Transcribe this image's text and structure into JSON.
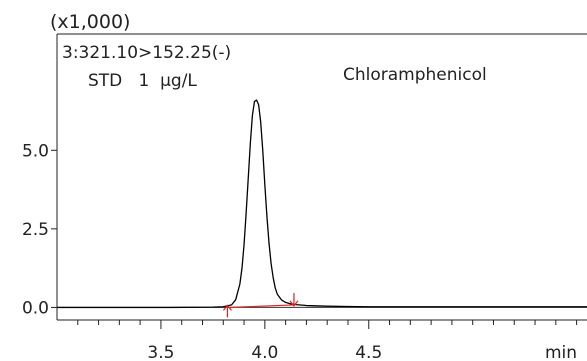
{
  "chart_data": {
    "type": "line",
    "y_multiplier_label": "(x1,000)",
    "channel_label": "3:321.10>152.25(-)",
    "sample_label": "STD   1  μg/L",
    "peak_label": "Chloramphenicol",
    "xlabel": "min",
    "x_unit": "min",
    "y_multiplier": 1000,
    "xlim": [
      3.0,
      5.55
    ],
    "ylim": [
      -0.4,
      8.7
    ],
    "x_ticks": [
      {
        "value": 3.5,
        "label": "3.5"
      },
      {
        "value": 4.0,
        "label": "4.0"
      },
      {
        "value": 4.5,
        "label": "4.5"
      }
    ],
    "y_ticks": [
      {
        "value": 0.0,
        "label": "0.0"
      },
      {
        "value": 2.5,
        "label": "2.5"
      },
      {
        "value": 5.0,
        "label": "5.0"
      }
    ],
    "grid": false,
    "series": [
      {
        "kind": "trace",
        "color": "#000000",
        "x": [
          3.0,
          3.55,
          3.75,
          3.8,
          3.84,
          3.86,
          3.88,
          3.89,
          3.9,
          3.91,
          3.92,
          3.93,
          3.94,
          3.95,
          3.96,
          3.97,
          3.98,
          3.99,
          4.0,
          4.01,
          4.02,
          4.03,
          4.04,
          4.05,
          4.06,
          4.08,
          4.1,
          4.12,
          4.15,
          4.2,
          4.3,
          4.4,
          4.5,
          4.6,
          5.55
        ],
        "y": [
          0.0,
          0.0,
          0.01,
          0.02,
          0.08,
          0.25,
          0.75,
          1.25,
          2.0,
          3.0,
          4.1,
          5.2,
          6.1,
          6.55,
          6.6,
          6.45,
          5.9,
          5.0,
          3.9,
          2.9,
          2.05,
          1.4,
          0.95,
          0.62,
          0.42,
          0.24,
          0.16,
          0.12,
          0.09,
          0.06,
          0.04,
          0.03,
          0.02,
          0.02,
          0.02
        ]
      },
      {
        "kind": "baseline",
        "color": "#e02020",
        "x": [
          3.82,
          4.14
        ],
        "y": [
          0.0,
          0.08
        ]
      }
    ],
    "markers": [
      {
        "x": 3.82,
        "y": 0.0,
        "direction": "up",
        "color": "#e02020"
      },
      {
        "x": 4.14,
        "y": 0.08,
        "direction": "down",
        "color": "#e02020"
      }
    ]
  }
}
